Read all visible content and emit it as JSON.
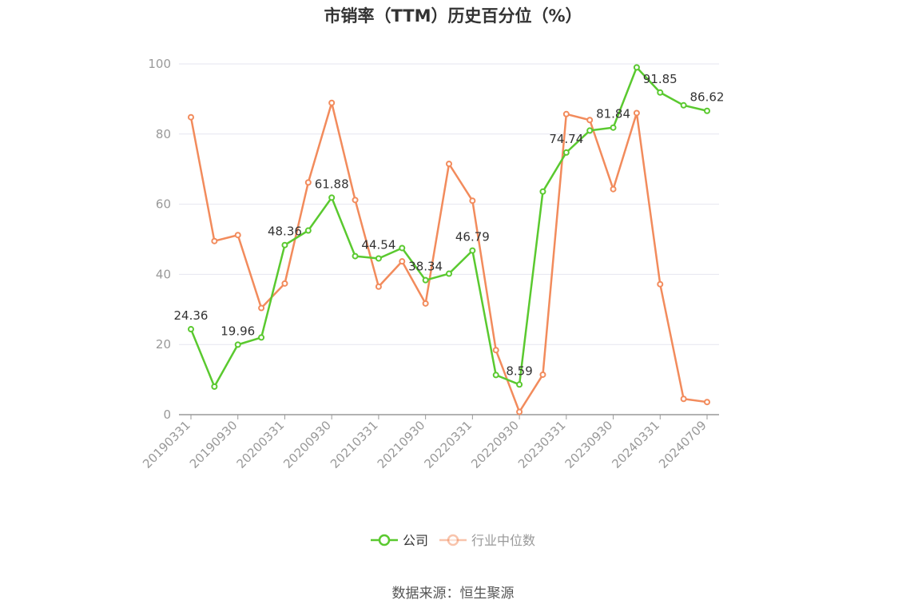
{
  "title": "市销率（TTM）历史百分位（%）",
  "source": "数据来源：恒生聚源",
  "colors": {
    "company": "#5ac92f",
    "industry": "#f28b5c",
    "grid": "#e6e6ef",
    "axis": "#999999"
  },
  "chart_data": {
    "type": "line",
    "title": "市销率（TTM）历史百分位（%）",
    "xlabel": "",
    "ylabel": "",
    "ylim": [
      0,
      100
    ],
    "yticks": [
      0,
      20,
      40,
      60,
      80,
      100
    ],
    "grid": true,
    "legend_position": "bottom-center",
    "x": [
      "20190331",
      "20190630",
      "20190930",
      "20191231",
      "20200331",
      "20200630",
      "20200930",
      "20201231",
      "20210331",
      "20210630",
      "20210930",
      "20211231",
      "20220331",
      "20220630",
      "20220930",
      "20221231",
      "20230331",
      "20230630",
      "20230930",
      "20231231",
      "20240331",
      "20240630",
      "20240709"
    ],
    "x_tick_labels": [
      "20190331",
      "20190930",
      "20200331",
      "20200930",
      "20210331",
      "20210930",
      "20220331",
      "20220930",
      "20230331",
      "20230930",
      "20240331",
      "20240709"
    ],
    "series": [
      {
        "name": "公司",
        "values": [
          24.36,
          8.0,
          19.96,
          22.0,
          48.36,
          52.5,
          61.88,
          45.2,
          44.54,
          47.5,
          38.34,
          40.2,
          46.79,
          11.3,
          8.59,
          63.6,
          74.74,
          81.0,
          81.84,
          99.0,
          91.85,
          88.2,
          86.62
        ]
      },
      {
        "name": "行业中位数",
        "values": [
          84.8,
          49.5,
          51.2,
          30.4,
          37.4,
          66.2,
          88.9,
          61.2,
          36.5,
          43.7,
          31.7,
          71.5,
          61.0,
          18.4,
          0.8,
          11.4,
          85.7,
          84.0,
          64.3,
          86.0,
          37.2,
          4.5,
          3.6
        ]
      }
    ],
    "data_labels": [
      {
        "series": "公司",
        "index": 0,
        "text": "24.36"
      },
      {
        "series": "公司",
        "index": 2,
        "text": "19.96"
      },
      {
        "series": "公司",
        "index": 4,
        "text": "48.36"
      },
      {
        "series": "公司",
        "index": 6,
        "text": "61.88"
      },
      {
        "series": "公司",
        "index": 8,
        "text": "44.54"
      },
      {
        "series": "公司",
        "index": 10,
        "text": "38.34"
      },
      {
        "series": "公司",
        "index": 12,
        "text": "46.79"
      },
      {
        "series": "公司",
        "index": 14,
        "text": "8.59"
      },
      {
        "series": "公司",
        "index": 16,
        "text": "74.74"
      },
      {
        "series": "公司",
        "index": 18,
        "text": "81.84"
      },
      {
        "series": "公司",
        "index": 20,
        "text": "91.85"
      },
      {
        "series": "公司",
        "index": 22,
        "text": "86.62"
      }
    ]
  }
}
